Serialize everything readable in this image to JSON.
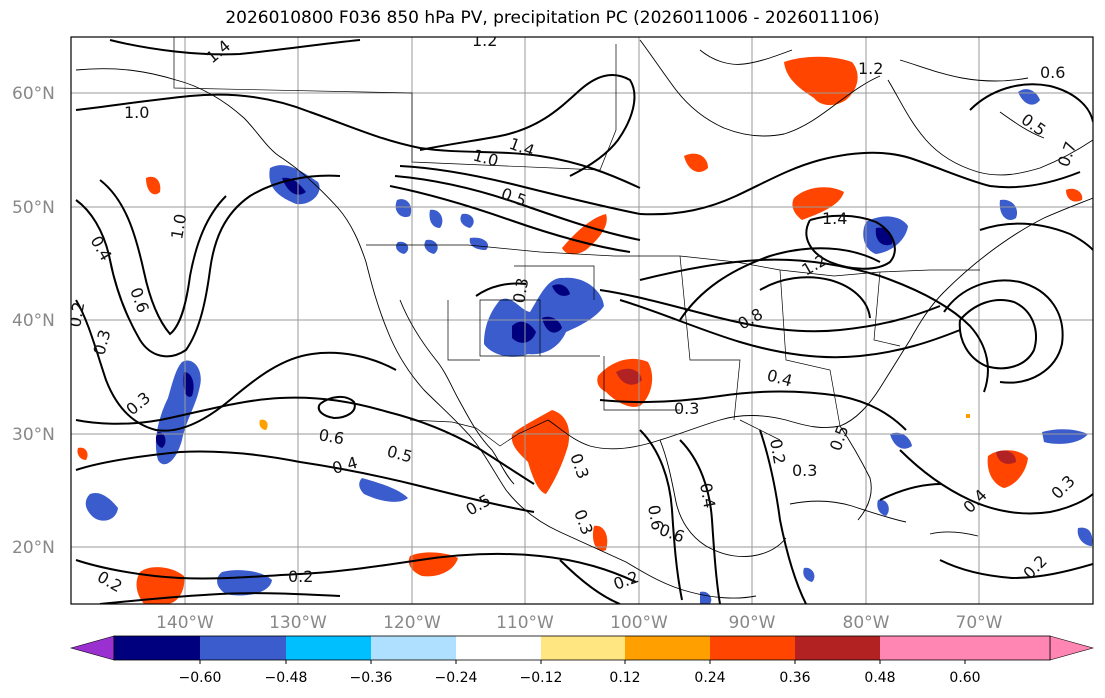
{
  "title": "2026010800 F036 850 hPa PV, precipitation PC (2026011006 - 2026011106)",
  "lat_labels": [
    "60°N",
    "50°N",
    "40°N",
    "30°N",
    "20°N"
  ],
  "lon_labels": [
    "140°W",
    "130°W",
    "120°W",
    "110°W",
    "100°W",
    "90°W",
    "80°W",
    "70°W"
  ],
  "colorbar": {
    "colors": [
      "#9b30d0",
      "#00007f",
      "#3a5ccc",
      "#00bfff",
      "#b0e0ff",
      "#ffffff",
      "#ffe680",
      "#ffa000",
      "#ff4500",
      "#b22222",
      "#ff85b3"
    ],
    "tick_labels": [
      "−0.60",
      "−0.48",
      "−0.36",
      "−0.24",
      "−0.12",
      "0.12",
      "0.24",
      "0.36",
      "0.48",
      "0.60"
    ]
  },
  "contour_labels": [
    "1.4",
    "1.2",
    "1.2",
    "0.6",
    "1.0",
    "0.5",
    "1.4",
    "1.0",
    "0.5",
    "0.7",
    "0.4",
    "1.0",
    "0.6",
    "0.2",
    "0.3",
    "0.3",
    "1.4",
    "1.2",
    "0.3",
    "0.8",
    "0.4",
    "0.3",
    "0.6",
    "0.4",
    "0.5",
    "0.5",
    "0.3",
    "0.2",
    "0.3",
    "0.5",
    "0.4",
    "0.6",
    "0.2",
    "0.2",
    "0.3",
    "0.3",
    "0.4",
    "0.2",
    "0.2",
    "0.6"
  ]
}
